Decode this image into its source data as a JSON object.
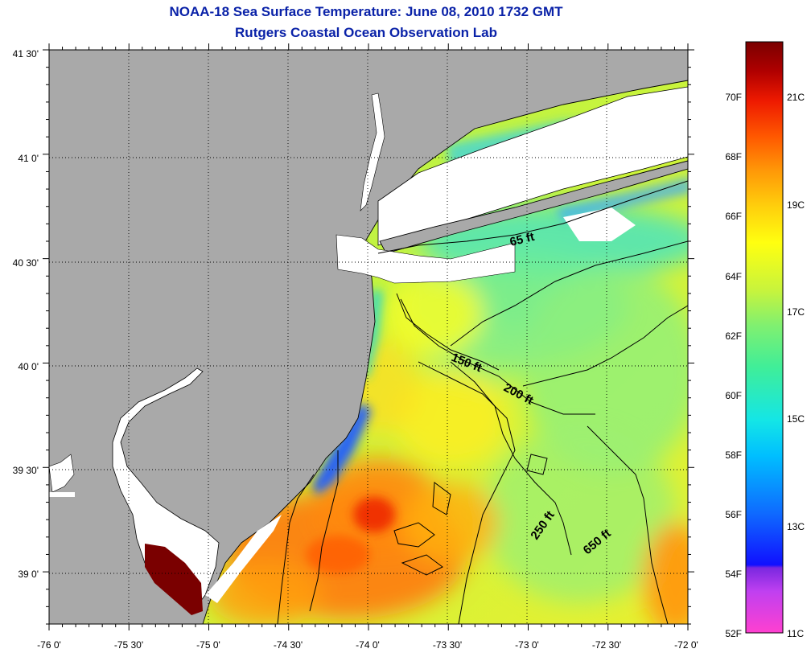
{
  "header": {
    "title": "NOAA-18 Sea Surface Temperature:  June 08, 2010 1732 GMT",
    "subtitle": "Rutgers Coastal Ocean Observation Lab"
  },
  "map": {
    "lat_labels": [
      "41 30'",
      "41 0'",
      "40 30'",
      "40 0'",
      "39 30'",
      "39 0'"
    ],
    "lon_labels": [
      "-76 0'",
      "-75 30'",
      "-75 0'",
      "-74 30'",
      "-74 0'",
      "-73 30'",
      "-73 0'",
      "-72 30'",
      "-72 0'"
    ],
    "contour_labels": [
      "65 ft",
      "150 ft",
      "200 ft",
      "250 ft",
      "650 ft"
    ],
    "colors": {
      "land": "#a9a9a9",
      "cloud": "#ffffff",
      "coastline": "#000000",
      "frame": "#000000"
    }
  },
  "colorbar": {
    "fahrenheit_labels": [
      "70F",
      "68F",
      "66F",
      "64F",
      "62F",
      "60F",
      "58F",
      "56F",
      "54F",
      "52F"
    ],
    "celsius_labels": [
      "21C",
      "19C",
      "17C",
      "15C",
      "13C",
      "11C"
    ],
    "gradient": [
      "#ff40d0",
      "#c040f0",
      "#7a28e0",
      "#1010ff",
      "#0f68ff",
      "#00bfff",
      "#14e6e6",
      "#40ee98",
      "#80f070",
      "#c8f43c",
      "#ffff10",
      "#ffd00c",
      "#ff9a08",
      "#ff5800",
      "#ee1a00",
      "#b00000",
      "#7a0000"
    ]
  }
}
